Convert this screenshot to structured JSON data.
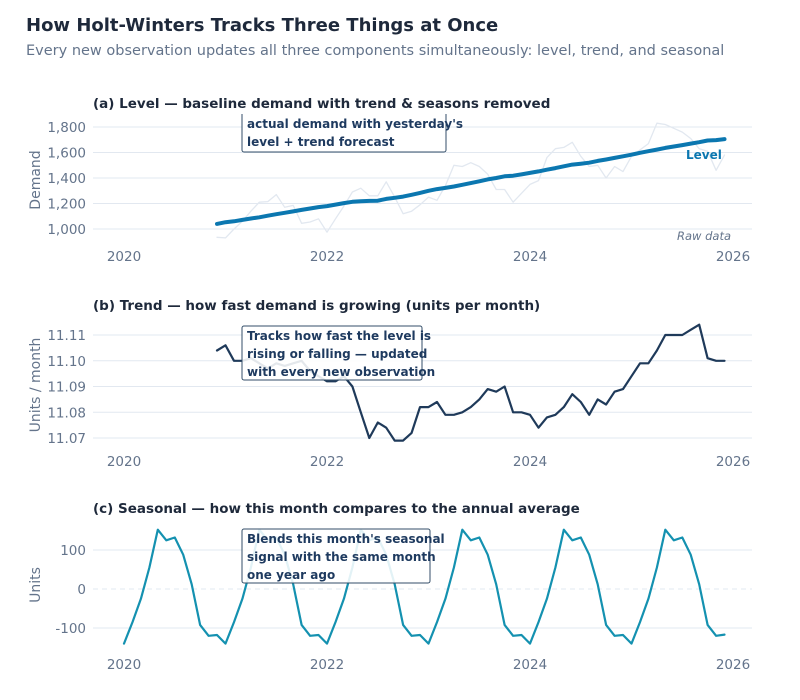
{
  "title": "How Holt-Winters Tracks Three Things at Once",
  "subtitle": "Every new observation updates all three components simultaneously: level, trend, and seasonal",
  "colors": {
    "level": "#0b77b0",
    "raw": "#e2e8f0",
    "trend": "#1f3a5a",
    "seasonal": "#1491b0"
  },
  "chart_data": [
    {
      "type": "line",
      "title": "(a) Level — baseline demand with trend & seasons removed",
      "ylabel": "Demand",
      "xlim": [
        2020,
        2026
      ],
      "ylim": [
        920,
        1850
      ],
      "xticks": [
        "2020",
        "2022",
        "2024",
        "2026"
      ],
      "yticks": [
        1000,
        1200,
        1400,
        1600,
        1800
      ],
      "ytick_labels": [
        "1,000",
        "1,200",
        "1,400",
        "1,600",
        "1,800"
      ],
      "grid": true,
      "annotation": [
        "actual demand with yesterday's",
        "level + trend forecast"
      ],
      "series": [
        {
          "name": "Raw data",
          "color": "#e2e8f0",
          "start": "2020-12",
          "frequency": "monthly",
          "values": [
            935,
            930,
            1000,
            1060,
            1140,
            1210,
            1215,
            1270,
            1170,
            1185,
            1045,
            1055,
            1080,
            975,
            1080,
            1180,
            1290,
            1320,
            1260,
            1260,
            1370,
            1250,
            1120,
            1140,
            1190,
            1250,
            1225,
            1340,
            1500,
            1490,
            1520,
            1490,
            1430,
            1310,
            1310,
            1210,
            1280,
            1350,
            1380,
            1560,
            1630,
            1640,
            1680,
            1570,
            1490,
            1500,
            1400,
            1490,
            1450,
            1570,
            1620,
            1670,
            1830,
            1820,
            1790,
            1760,
            1710,
            1630,
            1610,
            1460,
            1580
          ]
        },
        {
          "name": "Level",
          "color": "#0b77b0",
          "start": "2020-12",
          "frequency": "monthly",
          "values": [
            1040,
            1053,
            1060,
            1071,
            1082,
            1092,
            1104,
            1116,
            1127,
            1138,
            1150,
            1161,
            1172,
            1180,
            1191,
            1203,
            1213,
            1218,
            1220,
            1222,
            1236,
            1245,
            1254,
            1268,
            1283,
            1300,
            1313,
            1322,
            1333,
            1347,
            1360,
            1374,
            1389,
            1400,
            1413,
            1418,
            1428,
            1440,
            1452,
            1465,
            1478,
            1492,
            1505,
            1512,
            1520,
            1534,
            1545,
            1558,
            1570,
            1583,
            1598,
            1610,
            1623,
            1636,
            1647,
            1658,
            1670,
            1681,
            1694,
            1697,
            1705
          ]
        }
      ]
    },
    {
      "type": "line",
      "title": "(b) Trend — how fast demand is growing (units per month)",
      "ylabel": "Units / month",
      "xlim": [
        2020,
        2026
      ],
      "ylim": [
        11.066,
        11.116
      ],
      "xticks": [
        "2020",
        "2022",
        "2024",
        "2026"
      ],
      "yticks": [
        11.07,
        11.08,
        11.09,
        11.1,
        11.11
      ],
      "ytick_labels": [
        "11.07",
        "11.08",
        "11.09",
        "11.10",
        "11.11"
      ],
      "grid": true,
      "annotation": [
        "Tracks how fast the level is",
        "rising or falling — updated",
        "with every new observation"
      ],
      "series": [
        {
          "color": "#1f3a5a",
          "start": "2020-12",
          "frequency": "monthly",
          "values": [
            11.104,
            11.106,
            11.1,
            11.1,
            11.101,
            11.099,
            11.097,
            11.099,
            11.098,
            11.099,
            11.1,
            11.096,
            11.094,
            11.092,
            11.092,
            11.094,
            11.09,
            11.08,
            11.07,
            11.076,
            11.074,
            11.069,
            11.069,
            11.072,
            11.082,
            11.082,
            11.084,
            11.079,
            11.079,
            11.08,
            11.082,
            11.085,
            11.089,
            11.088,
            11.09,
            11.08,
            11.08,
            11.079,
            11.074,
            11.078,
            11.079,
            11.082,
            11.087,
            11.084,
            11.079,
            11.085,
            11.083,
            11.088,
            11.089,
            11.094,
            11.099,
            11.099,
            11.104,
            11.11,
            11.11,
            11.11,
            11.112,
            11.114,
            11.101,
            11.1,
            11.1
          ]
        }
      ]
    },
    {
      "type": "line",
      "title": "(c) Seasonal — how this month compares to the annual average",
      "ylabel": "Units",
      "xlim": [
        2020,
        2026
      ],
      "ylim": [
        -160,
        170
      ],
      "xticks": [
        "2020",
        "2022",
        "2024",
        "2026"
      ],
      "yticks": [
        -100,
        0,
        100
      ],
      "ytick_labels": [
        "-100",
        "0",
        "100"
      ],
      "grid": true,
      "zero_line": "dashed",
      "annotation": [
        "Blends this month's seasonal",
        "signal with the same month",
        "one year ago"
      ],
      "series": [
        {
          "color": "#1491b0",
          "start": "2020-01",
          "frequency": "monthly",
          "values": [
            -140,
            -85,
            -25,
            55,
            152,
            125,
            132,
            88,
            12,
            -92,
            -120,
            -118,
            -140,
            -85,
            -25,
            55,
            152,
            125,
            132,
            88,
            12,
            -92,
            -120,
            -118,
            -140,
            -85,
            -25,
            55,
            152,
            125,
            132,
            88,
            12,
            -92,
            -120,
            -118,
            -140,
            -85,
            -25,
            55,
            152,
            125,
            132,
            88,
            12,
            -92,
            -120,
            -118,
            -140,
            -85,
            -25,
            55,
            152,
            125,
            132,
            88,
            12,
            -92,
            -120,
            -118,
            -140,
            -85,
            -25,
            55,
            152,
            125,
            132,
            88,
            12,
            -92,
            -120,
            -117
          ]
        }
      ]
    }
  ],
  "labels": {
    "level": "Level",
    "raw": "Raw data"
  }
}
